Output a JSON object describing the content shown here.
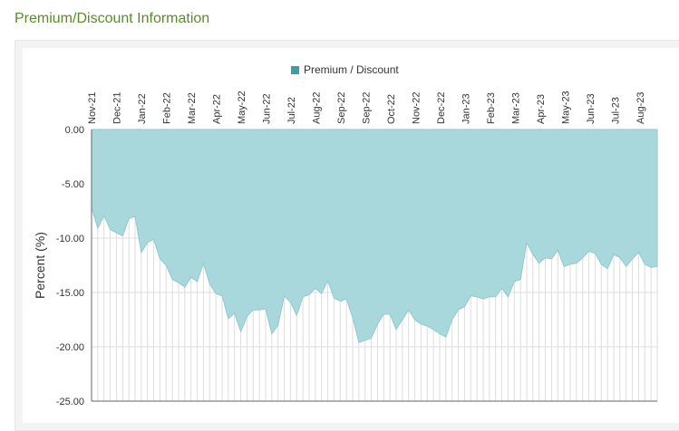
{
  "page": {
    "section_title": "Premium/Discount Information"
  },
  "colors": {
    "fill": "#a9d8dc",
    "stroke": "#8ec9cf",
    "legend_marker": "#3f9ea3",
    "grid": "#dddddd",
    "axis": "#666666",
    "title": "#5a8a2e"
  },
  "chart_data": {
    "type": "area",
    "title": "",
    "xlabel": "",
    "ylabel": "Percent (%)",
    "legend": {
      "placement": "top-center",
      "entries": [
        "Premium / Discount"
      ]
    },
    "ylim": [
      -25,
      0
    ],
    "yticks": [
      0,
      -5,
      -10,
      -15,
      -20,
      -25
    ],
    "ytick_labels": [
      "0.00",
      "-5.00",
      "-10.00",
      "-15.00",
      "-20.00",
      "-25.00"
    ],
    "grid": true,
    "x_tick_labels": [
      "Nov-21",
      "Dec-21",
      "Jan-22",
      "Feb-22",
      "Mar-22",
      "Apr-22",
      "May-22",
      "Jun-22",
      "Jul-22",
      "Aug-22",
      "Sep-22",
      "Sep-22",
      "Oct-22",
      "Nov-22",
      "Dec-22",
      "Jan-23",
      "Feb-23",
      "Mar-23",
      "Apr-23",
      "May-23",
      "Jun-23",
      "Jul-23",
      "Aug-23"
    ],
    "series": [
      {
        "name": "Premium / Discount",
        "values": [
          -7.2,
          -9.1,
          -7.9,
          -9.2,
          -9.5,
          -9.8,
          -8.2,
          -8.0,
          -11.3,
          -10.4,
          -10.1,
          -11.9,
          -12.5,
          -13.8,
          -14.1,
          -14.5,
          -13.6,
          -14.0,
          -12.3,
          -14.2,
          -15.1,
          -15.3,
          -17.4,
          -16.9,
          -18.6,
          -17.2,
          -16.6,
          -16.6,
          -16.5,
          -18.8,
          -18.0,
          -15.3,
          -15.9,
          -17.1,
          -15.4,
          -15.2,
          -14.6,
          -15.1,
          -13.9,
          -15.5,
          -15.8,
          -15.6,
          -17.3,
          -19.6,
          -19.4,
          -19.2,
          -17.9,
          -17.0,
          -17.0,
          -18.4,
          -17.5,
          -16.6,
          -17.5,
          -17.9,
          -18.1,
          -18.4,
          -18.8,
          -19.1,
          -17.5,
          -16.6,
          -16.3,
          -15.3,
          -15.4,
          -15.6,
          -15.4,
          -15.4,
          -14.6,
          -15.4,
          -14.0,
          -13.8,
          -10.4,
          -11.5,
          -12.3,
          -11.8,
          -11.9,
          -11.1,
          -12.6,
          -12.4,
          -12.3,
          -11.8,
          -11.2,
          -11.4,
          -12.4,
          -12.8,
          -11.5,
          -11.8,
          -12.6,
          -11.9,
          -11.3,
          -12.4,
          -12.7,
          -12.6
        ]
      }
    ]
  }
}
